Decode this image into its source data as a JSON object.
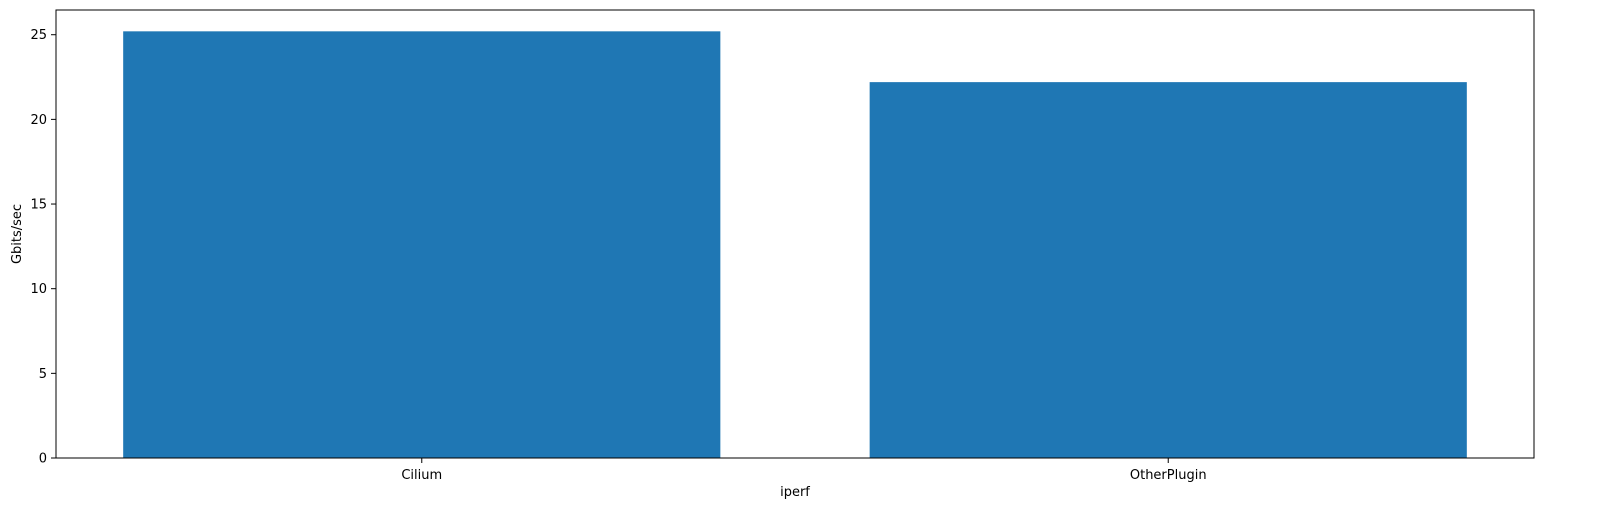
{
  "chart_data": {
    "type": "bar",
    "title": "",
    "xlabel": "iperf",
    "ylabel": "Gbits/sec",
    "categories": [
      "Cilium",
      "OtherPlugin"
    ],
    "values": [
      25.2,
      22.2
    ],
    "ylim": [
      0,
      26.46
    ],
    "yticks": [
      0,
      5,
      10,
      15,
      20,
      25
    ],
    "ytick_labels": [
      "0",
      "5",
      "10",
      "15",
      "20",
      "25"
    ],
    "bar_color": "#1f77b4",
    "grid": false,
    "legend": "none"
  }
}
